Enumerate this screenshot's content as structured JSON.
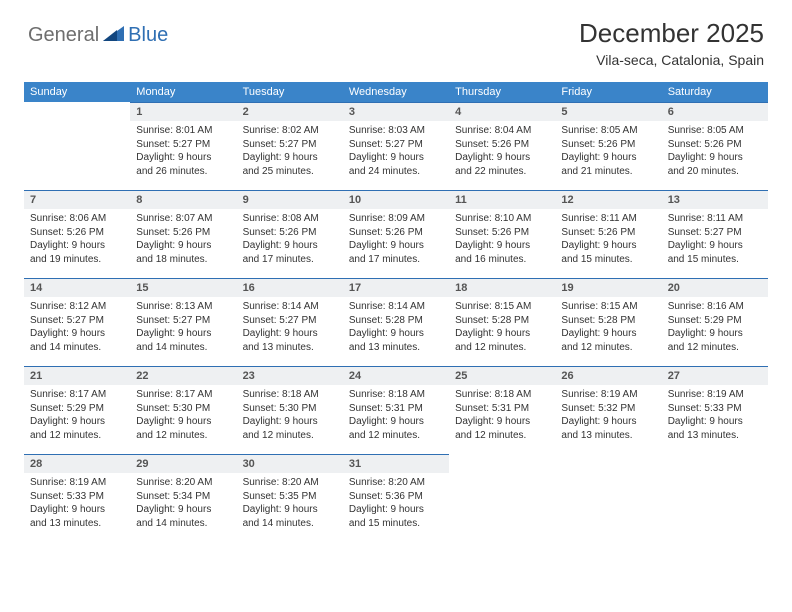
{
  "logo": {
    "word1": "General",
    "word2": "Blue"
  },
  "title": "December 2025",
  "location": "Vila-seca, Catalonia, Spain",
  "colors": {
    "header_bg": "#3a84c9",
    "header_text": "#ffffff",
    "daynum_bg": "#eef0f2",
    "rule": "#2f6fb3",
    "text": "#333333",
    "logo_gray": "#6e6e6e",
    "logo_blue": "#2f6fb3"
  },
  "day_names": [
    "Sunday",
    "Monday",
    "Tuesday",
    "Wednesday",
    "Thursday",
    "Friday",
    "Saturday"
  ],
  "first_weekday": 1,
  "days_in_month": 31,
  "days": {
    "1": {
      "sunrise": "8:01 AM",
      "sunset": "5:27 PM",
      "daylight": "9 hours and 26 minutes."
    },
    "2": {
      "sunrise": "8:02 AM",
      "sunset": "5:27 PM",
      "daylight": "9 hours and 25 minutes."
    },
    "3": {
      "sunrise": "8:03 AM",
      "sunset": "5:27 PM",
      "daylight": "9 hours and 24 minutes."
    },
    "4": {
      "sunrise": "8:04 AM",
      "sunset": "5:26 PM",
      "daylight": "9 hours and 22 minutes."
    },
    "5": {
      "sunrise": "8:05 AM",
      "sunset": "5:26 PM",
      "daylight": "9 hours and 21 minutes."
    },
    "6": {
      "sunrise": "8:05 AM",
      "sunset": "5:26 PM",
      "daylight": "9 hours and 20 minutes."
    },
    "7": {
      "sunrise": "8:06 AM",
      "sunset": "5:26 PM",
      "daylight": "9 hours and 19 minutes."
    },
    "8": {
      "sunrise": "8:07 AM",
      "sunset": "5:26 PM",
      "daylight": "9 hours and 18 minutes."
    },
    "9": {
      "sunrise": "8:08 AM",
      "sunset": "5:26 PM",
      "daylight": "9 hours and 17 minutes."
    },
    "10": {
      "sunrise": "8:09 AM",
      "sunset": "5:26 PM",
      "daylight": "9 hours and 17 minutes."
    },
    "11": {
      "sunrise": "8:10 AM",
      "sunset": "5:26 PM",
      "daylight": "9 hours and 16 minutes."
    },
    "12": {
      "sunrise": "8:11 AM",
      "sunset": "5:26 PM",
      "daylight": "9 hours and 15 minutes."
    },
    "13": {
      "sunrise": "8:11 AM",
      "sunset": "5:27 PM",
      "daylight": "9 hours and 15 minutes."
    },
    "14": {
      "sunrise": "8:12 AM",
      "sunset": "5:27 PM",
      "daylight": "9 hours and 14 minutes."
    },
    "15": {
      "sunrise": "8:13 AM",
      "sunset": "5:27 PM",
      "daylight": "9 hours and 14 minutes."
    },
    "16": {
      "sunrise": "8:14 AM",
      "sunset": "5:27 PM",
      "daylight": "9 hours and 13 minutes."
    },
    "17": {
      "sunrise": "8:14 AM",
      "sunset": "5:28 PM",
      "daylight": "9 hours and 13 minutes."
    },
    "18": {
      "sunrise": "8:15 AM",
      "sunset": "5:28 PM",
      "daylight": "9 hours and 12 minutes."
    },
    "19": {
      "sunrise": "8:15 AM",
      "sunset": "5:28 PM",
      "daylight": "9 hours and 12 minutes."
    },
    "20": {
      "sunrise": "8:16 AM",
      "sunset": "5:29 PM",
      "daylight": "9 hours and 12 minutes."
    },
    "21": {
      "sunrise": "8:17 AM",
      "sunset": "5:29 PM",
      "daylight": "9 hours and 12 minutes."
    },
    "22": {
      "sunrise": "8:17 AM",
      "sunset": "5:30 PM",
      "daylight": "9 hours and 12 minutes."
    },
    "23": {
      "sunrise": "8:18 AM",
      "sunset": "5:30 PM",
      "daylight": "9 hours and 12 minutes."
    },
    "24": {
      "sunrise": "8:18 AM",
      "sunset": "5:31 PM",
      "daylight": "9 hours and 12 minutes."
    },
    "25": {
      "sunrise": "8:18 AM",
      "sunset": "5:31 PM",
      "daylight": "9 hours and 12 minutes."
    },
    "26": {
      "sunrise": "8:19 AM",
      "sunset": "5:32 PM",
      "daylight": "9 hours and 13 minutes."
    },
    "27": {
      "sunrise": "8:19 AM",
      "sunset": "5:33 PM",
      "daylight": "9 hours and 13 minutes."
    },
    "28": {
      "sunrise": "8:19 AM",
      "sunset": "5:33 PM",
      "daylight": "9 hours and 13 minutes."
    },
    "29": {
      "sunrise": "8:20 AM",
      "sunset": "5:34 PM",
      "daylight": "9 hours and 14 minutes."
    },
    "30": {
      "sunrise": "8:20 AM",
      "sunset": "5:35 PM",
      "daylight": "9 hours and 14 minutes."
    },
    "31": {
      "sunrise": "8:20 AM",
      "sunset": "5:36 PM",
      "daylight": "9 hours and 15 minutes."
    }
  },
  "labels": {
    "sunrise": "Sunrise:",
    "sunset": "Sunset:",
    "daylight": "Daylight:"
  }
}
